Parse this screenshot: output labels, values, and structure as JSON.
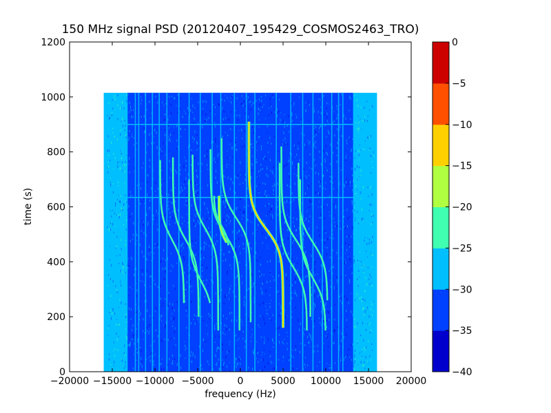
{
  "chart_data": {
    "type": "heatmap",
    "title": "150 MHz signal PSD (20120407_195429_COSMOS2463_TRO)",
    "xlabel": "frequency (Hz)",
    "ylabel": "time (s)",
    "xlim": [
      -20000,
      20000
    ],
    "ylim": [
      0,
      1200
    ],
    "xticks": [
      -20000,
      -15000,
      -10000,
      -5000,
      0,
      5000,
      10000,
      15000,
      20000
    ],
    "xtick_labels": [
      "−20000",
      "−15000",
      "−10000",
      "−5000",
      "0",
      "5000",
      "10000",
      "15000",
      "20000"
    ],
    "yticks": [
      0,
      200,
      400,
      600,
      800,
      1000,
      1200
    ],
    "ytick_labels": [
      "0",
      "200",
      "400",
      "600",
      "800",
      "1000",
      "1200"
    ],
    "data_extent": {
      "x": [
        -16000,
        16000
      ],
      "y": [
        0,
        1015
      ]
    },
    "grid": false,
    "colorbar": {
      "levels": [
        -40,
        -35,
        -30,
        -25,
        -20,
        -15,
        -10,
        -5,
        0
      ],
      "tick_labels": [
        "−40",
        "−35",
        "−30",
        "−25",
        "−20",
        "−15",
        "−10",
        "−5",
        "0"
      ],
      "colors": [
        "#0000cd",
        "#0040ff",
        "#00bfff",
        "#40ffb0",
        "#b0ff40",
        "#ffd000",
        "#ff5000",
        "#cd0000"
      ]
    },
    "background_level_colors": {
      "edge": "#00bfff",
      "band": "#0040ff"
    },
    "vertical_lines_hz": [
      -12300,
      -11900,
      -11100,
      -10300,
      -9500,
      -8600,
      -7200,
      -6000,
      -4700,
      -3300,
      -2300,
      -700,
      700,
      1700,
      4200,
      5900,
      7300,
      8500,
      9600,
      10700,
      11500,
      12000
    ],
    "doppler_traces": [
      {
        "center_x": 3000,
        "center_y": 520,
        "amplitude": 2000,
        "slope": 0.012,
        "y_range": [
          160,
          910
        ],
        "level": -15
      },
      {
        "center_x": 6500,
        "center_y": 480,
        "amplitude": 1700,
        "slope": 0.012,
        "y_range": [
          200,
          820
        ],
        "level": -25
      },
      {
        "center_x": 8500,
        "center_y": 470,
        "amplitude": 1700,
        "slope": 0.012,
        "y_range": [
          260,
          760
        ],
        "level": -25
      },
      {
        "center_x": 6200,
        "center_y": 380,
        "amplitude": 1600,
        "slope": 0.012,
        "y_range": [
          150,
          760
        ],
        "level": -25
      },
      {
        "center_x": 8500,
        "center_y": 340,
        "amplitude": 1500,
        "slope": 0.012,
        "y_range": [
          150,
          700
        ],
        "level": -25
      },
      {
        "center_x": -500,
        "center_y": 560,
        "amplitude": 1700,
        "slope": 0.012,
        "y_range": [
          180,
          850
        ],
        "level": -25
      },
      {
        "center_x": -1800,
        "center_y": 500,
        "amplitude": 1700,
        "slope": 0.012,
        "y_range": [
          150,
          810
        ],
        "level": -25
      },
      {
        "center_x": -4100,
        "center_y": 520,
        "amplitude": 1500,
        "slope": 0.012,
        "y_range": [
          150,
          790
        ],
        "level": -25
      },
      {
        "center_x": -6400,
        "center_y": 480,
        "amplitude": 1500,
        "slope": 0.012,
        "y_range": [
          200,
          780
        ],
        "level": -25
      },
      {
        "center_x": -8000,
        "center_y": 480,
        "amplitude": 1400,
        "slope": 0.012,
        "y_range": [
          250,
          770
        ],
        "level": -25
      },
      {
        "center_x": -4600,
        "center_y": 330,
        "amplitude": 1400,
        "slope": 0.012,
        "y_range": [
          250,
          700
        ],
        "level": -25
      },
      {
        "center_x": -1600,
        "center_y": 470,
        "amplitude": 900,
        "slope": 0.02,
        "y_range": [
          470,
          640
        ],
        "level": -20
      },
      {
        "center_x": -2200,
        "center_y": 530,
        "amplitude": 900,
        "slope": 0.02,
        "y_range": [
          460,
          640
        ],
        "level": -25
      }
    ],
    "horizontal_lines_s": [
      900,
      634
    ]
  }
}
